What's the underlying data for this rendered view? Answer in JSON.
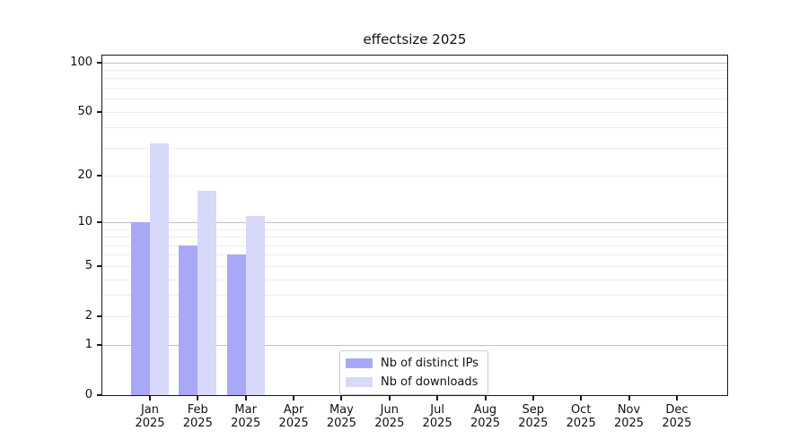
{
  "chart_data": {
    "type": "bar",
    "title": "effectsize 2025",
    "categories": [
      "Jan",
      "Feb",
      "Mar",
      "Apr",
      "May",
      "Jun",
      "Jul",
      "Aug",
      "Sep",
      "Oct",
      "Nov",
      "Dec"
    ],
    "category_year": "2025",
    "series": [
      {
        "name": "Nb of distinct IPs",
        "color": "#a8a8f7",
        "values": [
          10,
          7,
          6,
          null,
          null,
          null,
          null,
          null,
          null,
          null,
          null,
          null
        ]
      },
      {
        "name": "Nb of downloads",
        "color": "#d8d8fa",
        "values": [
          32,
          16,
          11,
          null,
          null,
          null,
          null,
          null,
          null,
          null,
          null,
          null
        ]
      }
    ],
    "y_ticks": [
      0,
      1,
      2,
      5,
      10,
      20,
      50,
      100
    ],
    "ylim": [
      0,
      110
    ],
    "scale": "log10(1+y)",
    "xlabel": "",
    "ylabel": "",
    "grid": {
      "major": [
        1,
        10,
        100
      ],
      "minor": [
        2,
        3,
        4,
        5,
        6,
        7,
        8,
        9,
        20,
        30,
        40,
        50,
        60,
        70,
        80,
        90
      ],
      "major_color": "#c2c2c2",
      "minor_color": "#ececec"
    },
    "legend_position": "lower center",
    "frame_color": "#1a1a1a",
    "background_color": "#ffffff"
  }
}
